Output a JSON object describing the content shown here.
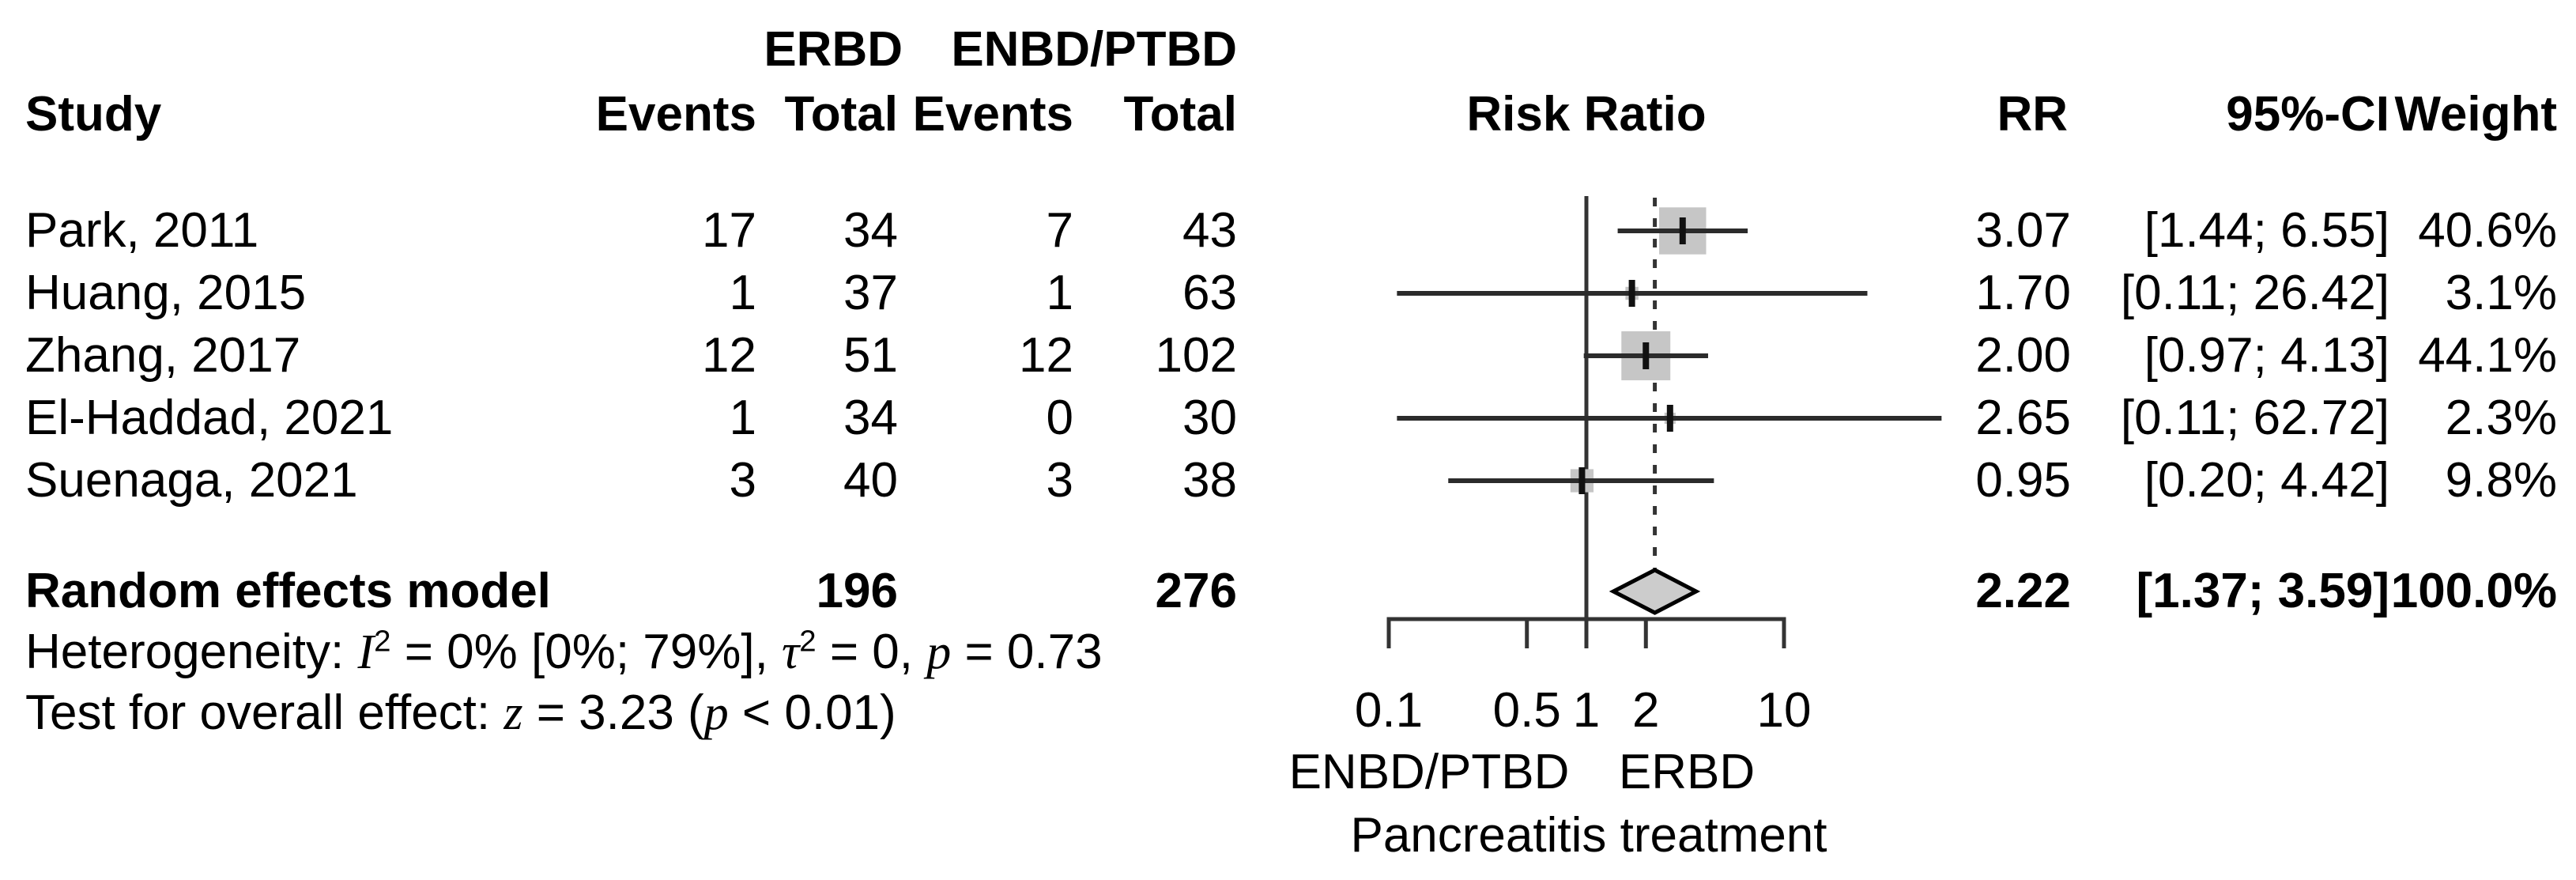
{
  "headers": {
    "study": "Study",
    "group_erbd": "ERBD",
    "group_enbd": "ENBD/PTBD",
    "events": "Events",
    "total": "Total",
    "risk_ratio": "Risk Ratio",
    "rr": "RR",
    "ci": "95%-CI",
    "weight": "Weight"
  },
  "colors": {
    "background": "#ffffff",
    "text": "#000000",
    "square": "#c6c6c6",
    "diamond": "#cccccc",
    "ci_line": "#2b2b2b",
    "axis_line": "#333333"
  },
  "chart_data": {
    "type": "forest",
    "effect_measure": "Risk Ratio",
    "model": "Random effects",
    "axis": {
      "scale": "log10",
      "range": [
        0.1,
        10
      ],
      "reference_line": 1,
      "pooled_line": 2.22,
      "ticks": [
        {
          "value": 0.1,
          "label": "0.1"
        },
        {
          "value": 0.5,
          "label": "0.5"
        },
        {
          "value": 1,
          "label": "1"
        },
        {
          "value": 2,
          "label": "2"
        },
        {
          "value": 10,
          "label": "10"
        }
      ],
      "left_label": "ENBD/PTBD",
      "right_label": "ERBD",
      "xlabel": "Pancreatitis treatment"
    },
    "studies": [
      {
        "name": "Park, 2011",
        "erbd_events": "17",
        "erbd_total": "34",
        "enbd_events": "7",
        "enbd_total": "43",
        "rr": 3.07,
        "ci_low": 1.44,
        "ci_high": 6.55,
        "weight": 40.6,
        "rr_text": "3.07",
        "ci_text": "[1.44; 6.55]",
        "weight_text": "40.6%"
      },
      {
        "name": "Huang, 2015",
        "erbd_events": "1",
        "erbd_total": "37",
        "enbd_events": "1",
        "enbd_total": "63",
        "rr": 1.7,
        "ci_low": 0.11,
        "ci_high": 26.42,
        "weight": 3.1,
        "rr_text": "1.70",
        "ci_text": "[0.11; 26.42]",
        "weight_text": "3.1%"
      },
      {
        "name": "Zhang, 2017",
        "erbd_events": "12",
        "erbd_total": "51",
        "enbd_events": "12",
        "enbd_total": "102",
        "rr": 2.0,
        "ci_low": 0.97,
        "ci_high": 4.13,
        "weight": 44.1,
        "rr_text": "2.00",
        "ci_text": "[0.97; 4.13]",
        "weight_text": "44.1%"
      },
      {
        "name": "El-Haddad, 2021",
        "erbd_events": "1",
        "erbd_total": "34",
        "enbd_events": "0",
        "enbd_total": "30",
        "rr": 2.65,
        "ci_low": 0.11,
        "ci_high": 62.72,
        "weight": 2.3,
        "rr_text": "2.65",
        "ci_text": "[0.11; 62.72]",
        "weight_text": "2.3%"
      },
      {
        "name": "Suenaga, 2021",
        "erbd_events": "3",
        "erbd_total": "40",
        "enbd_events": "3",
        "enbd_total": "38",
        "rr": 0.95,
        "ci_low": 0.2,
        "ci_high": 4.42,
        "weight": 9.8,
        "rr_text": "0.95",
        "ci_text": "[0.20; 4.42]",
        "weight_text": "9.8%"
      }
    ],
    "pooled": {
      "label": "Random effects model",
      "erbd_total": "196",
      "enbd_total": "276",
      "rr": 2.22,
      "ci_low": 1.37,
      "ci_high": 3.59,
      "rr_text": "2.22",
      "ci_text": "[1.37; 3.59]",
      "weight_text": "100.0%"
    },
    "heterogeneity_segments": [
      {
        "t": "Heterogeneity: "
      },
      {
        "t": "I",
        "i": true
      },
      {
        "t": "2",
        "sup": true
      },
      {
        "t": " = 0% [0%; 79%], "
      },
      {
        "t": "τ",
        "i": true
      },
      {
        "t": "2",
        "sup": true
      },
      {
        "t": " = 0, "
      },
      {
        "t": "p",
        "i": true
      },
      {
        "t": " = 0.73"
      }
    ],
    "overall_test_segments": [
      {
        "t": "Test for overall effect: "
      },
      {
        "t": "z",
        "i": true
      },
      {
        "t": " = 3.23 ("
      },
      {
        "t": "p",
        "i": true
      },
      {
        "t": " < 0.01)"
      }
    ]
  }
}
